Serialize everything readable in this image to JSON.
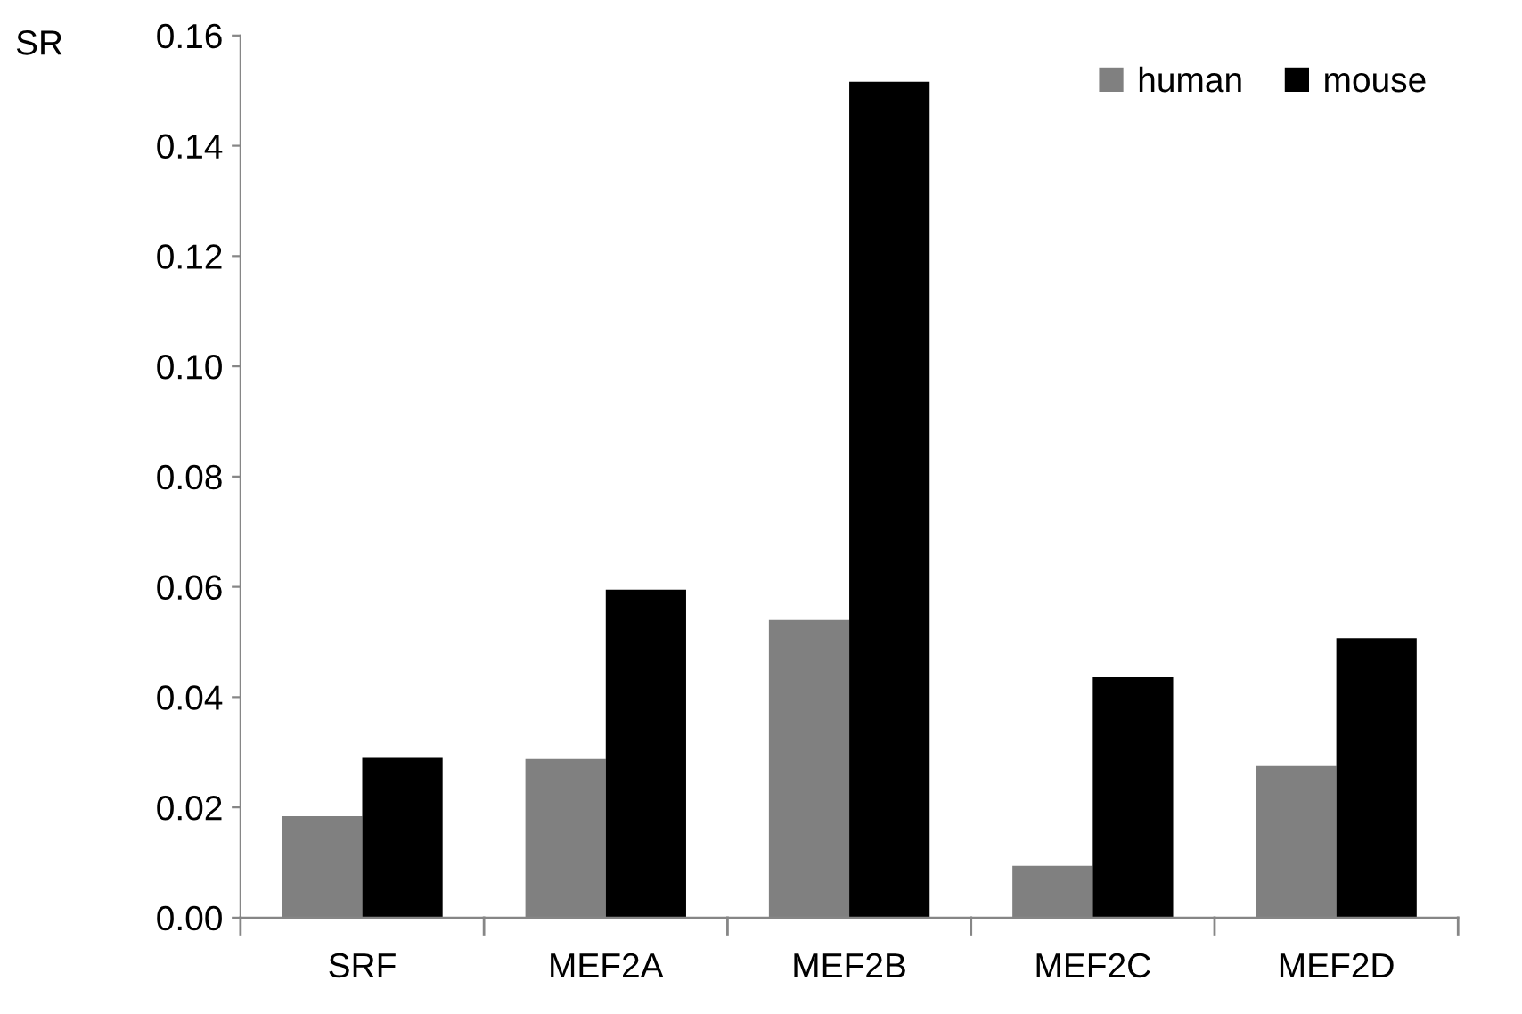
{
  "chart_data": {
    "type": "bar",
    "ylabel": "SR",
    "categories": [
      "SRF",
      "MEF2A",
      "MEF2B",
      "MEF2C",
      "MEF2D"
    ],
    "series": [
      {
        "name": "human",
        "color": "#808080",
        "values": [
          0.0184,
          0.0288,
          0.054,
          0.0094,
          0.0275
        ]
      },
      {
        "name": "mouse",
        "color": "#000000",
        "values": [
          0.029,
          0.0595,
          0.1516,
          0.0436,
          0.0507
        ]
      }
    ],
    "ylim": [
      0,
      0.16
    ],
    "yticks": [
      {
        "value": 0,
        "label": "0.00"
      },
      {
        "value": 0.02,
        "label": "0.02"
      },
      {
        "value": 0.04,
        "label": "0.04"
      },
      {
        "value": 0.06,
        "label": "0.06"
      },
      {
        "value": 0.08,
        "label": "0.08"
      },
      {
        "value": 0.1,
        "label": "0.10"
      },
      {
        "value": 0.12,
        "label": "0.12"
      },
      {
        "value": 0.14,
        "label": "0.14"
      },
      {
        "value": 0.16,
        "label": "0.16"
      }
    ],
    "grid": false,
    "legend": "top right"
  }
}
